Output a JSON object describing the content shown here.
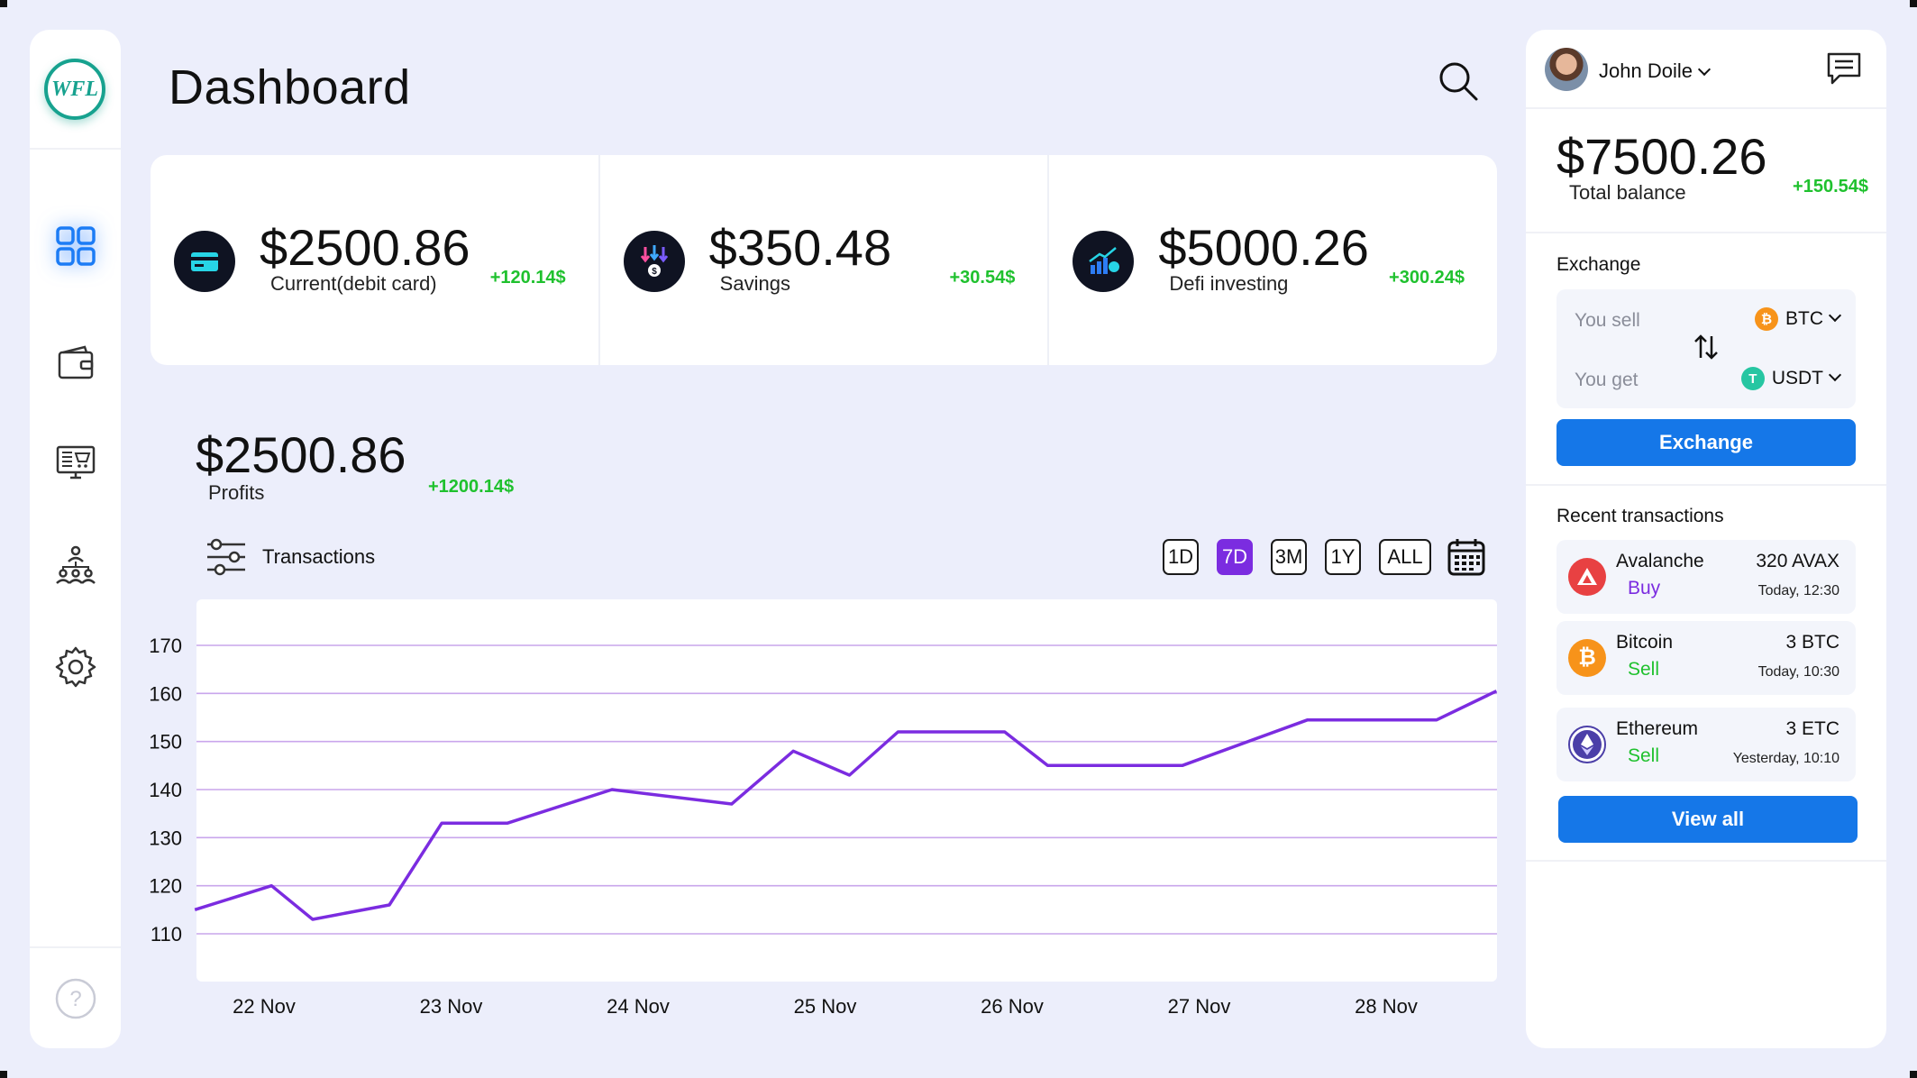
{
  "header": {
    "title": "Dashboard"
  },
  "sidebar": {
    "logo_text": "WFL",
    "items": [
      {
        "name": "dashboard",
        "icon": "grid-icon",
        "active": true
      },
      {
        "name": "wallet",
        "icon": "wallet-icon",
        "active": false
      },
      {
        "name": "market",
        "icon": "monitor-cart-icon",
        "active": false
      },
      {
        "name": "network",
        "icon": "people-network-icon",
        "active": false
      },
      {
        "name": "settings",
        "icon": "gear-icon",
        "active": false
      }
    ],
    "help_icon": "help-icon"
  },
  "cards": [
    {
      "amount": "$2500.86",
      "label": "Current(debit card)",
      "change": "+120.14$",
      "icon": "credit-card-icon"
    },
    {
      "amount": "$350.48",
      "label": "Savings",
      "change": "+30.54$",
      "icon": "savings-down-arrows-icon"
    },
    {
      "amount": "$5000.26",
      "label": "Defi investing",
      "change": "+300.24$",
      "icon": "investing-chart-icon"
    }
  ],
  "profits": {
    "amount": "$2500.86",
    "label": "Profits",
    "change": "+1200.14$"
  },
  "transactions": {
    "title": "Transactions",
    "ranges": [
      "1D",
      "7D",
      "3M",
      "1Y",
      "ALL"
    ],
    "active_range": "7D"
  },
  "chart_data": {
    "type": "line",
    "x": [
      "22 Nov",
      "23 Nov",
      "24 Nov",
      "25 Nov",
      "26 Nov",
      "27 Nov",
      "28 Nov"
    ],
    "yticks": [
      110,
      120,
      130,
      140,
      150,
      160,
      170
    ],
    "ylim": [
      110,
      170
    ],
    "grid": true,
    "line_color": "#7b2ce0",
    "series": [
      {
        "points": [
          [
            -0.37,
            115
          ],
          [
            0.04,
            120
          ],
          [
            0.26,
            113
          ],
          [
            0.67,
            116
          ],
          [
            0.95,
            133
          ],
          [
            1.3,
            133
          ],
          [
            1.86,
            140
          ],
          [
            2.5,
            137
          ],
          [
            2.83,
            148
          ],
          [
            3.13,
            143
          ],
          [
            3.39,
            152
          ],
          [
            3.96,
            152
          ],
          [
            4.19,
            145
          ],
          [
            4.91,
            145
          ],
          [
            5.58,
            154.5
          ],
          [
            6.27,
            154.5
          ],
          [
            6.59,
            160.5
          ]
        ]
      }
    ]
  },
  "user": {
    "name": "John Doile"
  },
  "balance": {
    "amount": "$7500.26",
    "label": "Total balance",
    "change": "+150.54$"
  },
  "exchange": {
    "title": "Exchange",
    "sell_label": "You sell",
    "sell_coin": "BTC",
    "get_label": "You get",
    "get_coin": "USDT",
    "button": "Exchange"
  },
  "recent": {
    "title": "Recent transactions",
    "items": [
      {
        "name": "Avalanche",
        "type": "Buy",
        "amount": "320 AVAX",
        "time": "Today, 12:30",
        "color": "#e84142",
        "type_color": "#7b2ce0"
      },
      {
        "name": "Bitcoin",
        "type": "Sell",
        "amount": "3 BTC",
        "time": "Today, 10:30",
        "color": "#f7931a",
        "type_color": "#1fc12e"
      },
      {
        "name": "Ethereum",
        "type": "Sell",
        "amount": "3 ETC",
        "time": "Yesterday, 10:10",
        "color": "#4b3fa8",
        "type_color": "#1fc12e"
      }
    ],
    "view_all": "View all"
  }
}
